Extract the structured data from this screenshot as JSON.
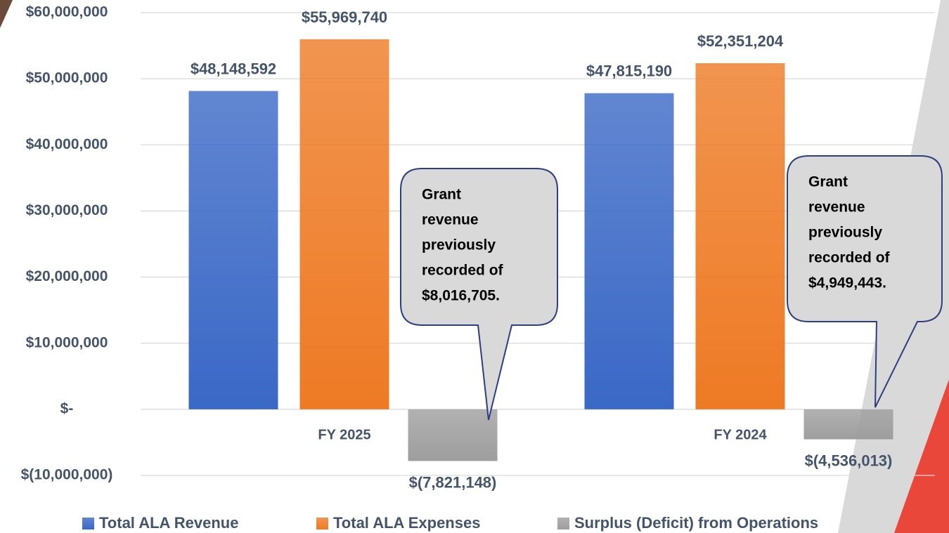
{
  "chart_data": {
    "type": "bar",
    "categories": [
      "FY 2025",
      "FY 2024"
    ],
    "series": [
      {
        "name": "Total ALA Revenue",
        "color": "#3a68c6",
        "values": [
          48148592,
          47815190
        ],
        "value_labels": [
          "$48,148,592",
          "$47,815,190"
        ]
      },
      {
        "name": "Total ALA Expenses",
        "color": "#ee7a24",
        "values": [
          55969740,
          52351204
        ],
        "value_labels": [
          "$55,969,740",
          "$52,351,204"
        ]
      },
      {
        "name": "Surplus (Deficit) from Operations",
        "color": "#9e9e9e",
        "values": [
          -7821148,
          -4536013
        ],
        "value_labels": [
          "$(7,821,148)",
          "$(4,536,013)"
        ]
      }
    ],
    "ylim": [
      -10000000,
      60000000
    ],
    "yticks": [
      {
        "value": -10000000,
        "label": "$(10,000,000)"
      },
      {
        "value": 0,
        "label": "$-"
      },
      {
        "value": 10000000,
        "label": "$10,000,000"
      },
      {
        "value": 20000000,
        "label": "$20,000,000"
      },
      {
        "value": 30000000,
        "label": "$30,000,000"
      },
      {
        "value": 40000000,
        "label": "$40,000,000"
      },
      {
        "value": 50000000,
        "label": "$50,000,000"
      },
      {
        "value": 60000000,
        "label": "$60,000,000"
      }
    ],
    "grid": true,
    "legend": "bottom",
    "annotations": [
      {
        "lines": [
          "Grant",
          "revenue",
          "previously",
          "recorded of",
          "$8,016,705."
        ]
      },
      {
        "lines": [
          "Grant",
          "revenue",
          "previously",
          "recorded of",
          "$4,949,443."
        ]
      }
    ]
  }
}
